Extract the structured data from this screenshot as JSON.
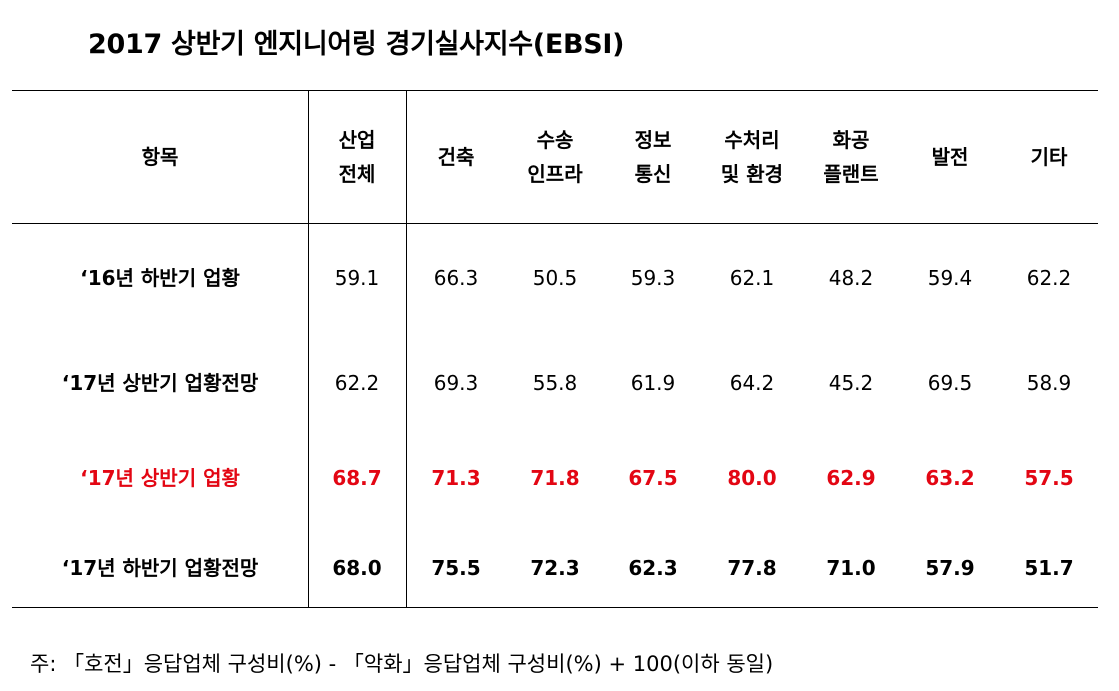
{
  "title": "2017 상반기 엔지니어링 경기실사지수(EBSI)",
  "header": {
    "item": "항목",
    "columns": [
      [
        "산업",
        "전체"
      ],
      [
        "건축"
      ],
      [
        "수송",
        "인프라"
      ],
      [
        "정보",
        "통신"
      ],
      [
        "수처리",
        "및 환경"
      ],
      [
        "화공",
        "플랜트"
      ],
      [
        "발전"
      ],
      [
        "기타"
      ]
    ]
  },
  "rows": [
    {
      "label": "‘16년 하반기 업황",
      "values": [
        "59.1",
        "66.3",
        "50.5",
        "59.3",
        "62.1",
        "48.2",
        "59.4",
        "62.2"
      ],
      "style": "normal"
    },
    {
      "label": "‘17년 상반기 업황전망",
      "values": [
        "62.2",
        "69.3",
        "55.8",
        "61.9",
        "64.2",
        "45.2",
        "69.5",
        "58.9"
      ],
      "style": "normal"
    },
    {
      "label": "‘17년 상반기 업황",
      "values": [
        "68.7",
        "71.3",
        "71.8",
        "67.5",
        "80.0",
        "62.9",
        "63.2",
        "57.5"
      ],
      "style": "red"
    },
    {
      "label": "‘17년 하반기 업황전망",
      "values": [
        "68.0",
        "75.5",
        "72.3",
        "62.3",
        "77.8",
        "71.0",
        "57.9",
        "51.7"
      ],
      "style": "bold"
    }
  ],
  "note": "주: 「호전」응답업체 구성비(%)  -  「악화」응답업체 구성비(%)  +  100(이하 동일)"
}
